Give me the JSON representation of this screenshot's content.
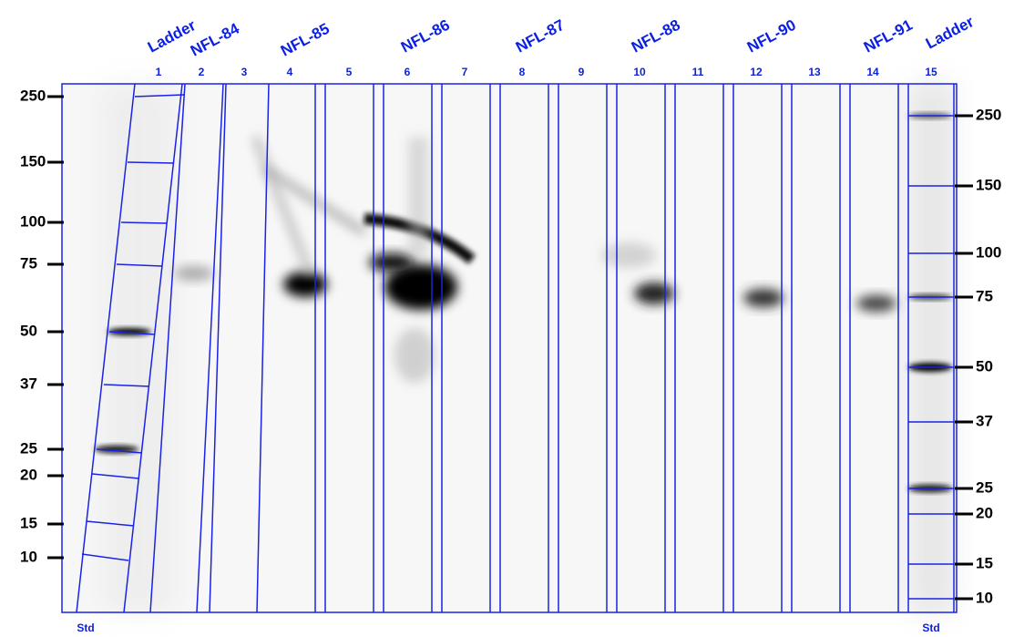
{
  "lanes": {
    "sample_labels": [
      "Ladder",
      "NFL-84",
      "NFL-85",
      "NFL-86",
      "NFL-87",
      "NFL-88",
      "NFL-90",
      "NFL-91",
      "Ladder"
    ],
    "numbers": [
      "1",
      "2",
      "3",
      "4",
      "5",
      "6",
      "7",
      "8",
      "9",
      "10",
      "11",
      "12",
      "13",
      "14",
      "15"
    ]
  },
  "left_markers": [
    "250",
    "150",
    "100",
    "75",
    "50",
    "37",
    "25",
    "20",
    "15",
    "10"
  ],
  "right_markers": [
    "250",
    "150",
    "100",
    "75",
    "50",
    "37",
    "25",
    "20",
    "15",
    "10"
  ],
  "footer": {
    "left": "Std",
    "right": "Std"
  }
}
